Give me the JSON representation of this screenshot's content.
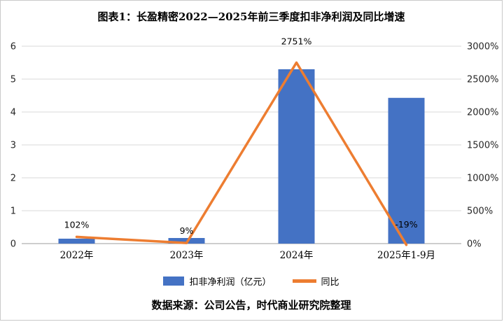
{
  "title": "图表1：长盈精密2022—2025年前三季度扣非净利润及同比增速",
  "source": "数据来源：公司公告，时代商业研究院整理",
  "colors": {
    "bar": "#4472C4",
    "line": "#ED7D31",
    "grid": "#d9d9d9",
    "axis": "#9e9e9e",
    "tick_text": "#262626",
    "label_text": "#000000"
  },
  "chart_data": {
    "type": "combo",
    "categories": [
      "2022年",
      "2023年",
      "2024年",
      "2025年1-9月"
    ],
    "series": [
      {
        "name": "扣非净利润（亿元）",
        "type": "bar",
        "axis": "left",
        "values": [
          0.15,
          0.17,
          5.3,
          4.43
        ],
        "color": "#4472C4"
      },
      {
        "name": "同比",
        "type": "line",
        "axis": "right",
        "values": [
          102,
          9,
          2751,
          -19
        ],
        "labels": [
          "102%",
          "9%",
          "2751%",
          "-19%"
        ],
        "color": "#ED7D31"
      }
    ],
    "left_axis": {
      "min": 0,
      "max": 6,
      "step": 1,
      "ticks": [
        "0",
        "1",
        "2",
        "3",
        "4",
        "5",
        "6"
      ]
    },
    "right_axis": {
      "min": 0,
      "max": 3000,
      "step": 500,
      "ticks": [
        "0%",
        "500%",
        "1000%",
        "1500%",
        "2000%",
        "2500%",
        "3000%"
      ]
    },
    "grid": true,
    "legend_position": "bottom"
  }
}
